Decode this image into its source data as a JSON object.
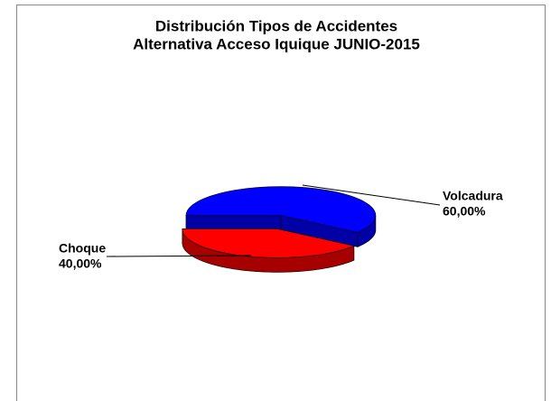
{
  "chart_data": {
    "type": "pie",
    "title": "Distribución Tipos de Accidentes",
    "subtitle": "Alternativa Acceso Iquique JUNIO-2015",
    "categories": [
      "Volcadura",
      "Choque"
    ],
    "values": [
      60,
      40
    ],
    "value_labels": [
      "60,00%",
      "40,00%"
    ],
    "colors": [
      "#0000ff",
      "#ff0000"
    ],
    "three_d": true
  }
}
